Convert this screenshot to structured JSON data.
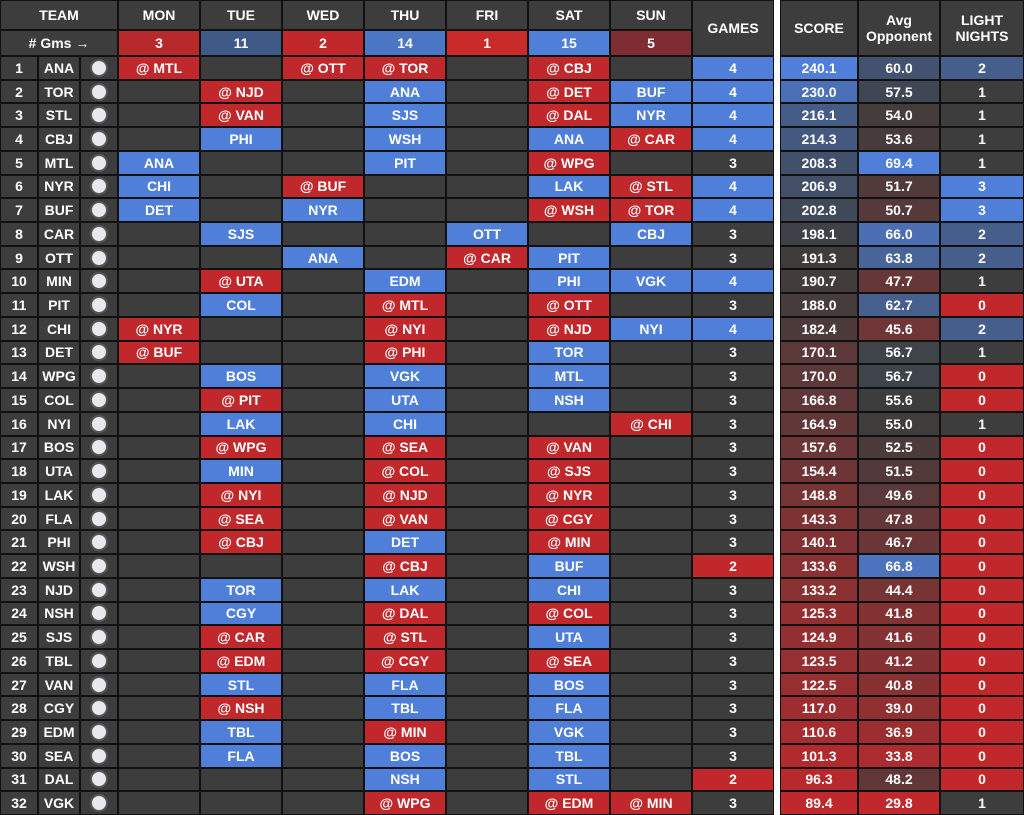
{
  "header": {
    "team": "TEAM",
    "games_label": "# Gms →",
    "games": "GAMES",
    "score": "SCORE",
    "avg": [
      "Avg",
      "Opponent"
    ],
    "light": [
      "LIGHT",
      "NIGHTS"
    ],
    "days": [
      {
        "name": "MON",
        "count": 3,
        "color": "#b8292b"
      },
      {
        "name": "TUE",
        "count": 11,
        "color": "#3f5a86"
      },
      {
        "name": "WED",
        "count": 2,
        "color": "#c0282b"
      },
      {
        "name": "THU",
        "count": 14,
        "color": "#4a76c4"
      },
      {
        "name": "FRI",
        "count": 1,
        "color": "#c92a2a"
      },
      {
        "name": "SAT",
        "count": 15,
        "color": "#4f7fd6"
      },
      {
        "name": "SUN",
        "count": 5,
        "color": "#7e2e33"
      }
    ]
  },
  "colors": {
    "home": "#4f7fd8",
    "away": "#c0282b",
    "empty": "#3d3d3d"
  },
  "rows": [
    {
      "rank": 1,
      "team": "ANA",
      "games": [
        "@ MTL",
        null,
        "@ OTT",
        "@ TOR",
        null,
        "@ CBJ",
        null
      ],
      "total": 4,
      "score": "240.1",
      "avg": "60.0",
      "light": 2
    },
    {
      "rank": 2,
      "team": "TOR",
      "games": [
        null,
        "@ NJD",
        null,
        "ANA",
        null,
        "@ DET",
        "BUF"
      ],
      "total": 4,
      "score": "230.0",
      "avg": "57.5",
      "light": 1
    },
    {
      "rank": 3,
      "team": "STL",
      "games": [
        null,
        "@ VAN",
        null,
        "SJS",
        null,
        "@ DAL",
        "NYR"
      ],
      "total": 4,
      "score": "216.1",
      "avg": "54.0",
      "light": 1
    },
    {
      "rank": 4,
      "team": "CBJ",
      "games": [
        null,
        "PHI",
        null,
        "WSH",
        null,
        "ANA",
        "@ CAR"
      ],
      "total": 4,
      "score": "214.3",
      "avg": "53.6",
      "light": 1
    },
    {
      "rank": 5,
      "team": "MTL",
      "games": [
        "ANA",
        null,
        null,
        "PIT",
        null,
        "@ WPG",
        null
      ],
      "total": 3,
      "score": "208.3",
      "avg": "69.4",
      "light": 1
    },
    {
      "rank": 6,
      "team": "NYR",
      "games": [
        "CHI",
        null,
        "@ BUF",
        null,
        null,
        "LAK",
        "@ STL"
      ],
      "total": 4,
      "score": "206.9",
      "avg": "51.7",
      "light": 3
    },
    {
      "rank": 7,
      "team": "BUF",
      "games": [
        "DET",
        null,
        "NYR",
        null,
        null,
        "@ WSH",
        "@ TOR"
      ],
      "total": 4,
      "score": "202.8",
      "avg": "50.7",
      "light": 3
    },
    {
      "rank": 8,
      "team": "CAR",
      "games": [
        null,
        "SJS",
        null,
        null,
        "OTT",
        null,
        "CBJ"
      ],
      "total": 3,
      "score": "198.1",
      "avg": "66.0",
      "light": 2
    },
    {
      "rank": 9,
      "team": "OTT",
      "games": [
        null,
        null,
        "ANA",
        null,
        "@ CAR",
        "PIT",
        null
      ],
      "total": 3,
      "score": "191.3",
      "avg": "63.8",
      "light": 2
    },
    {
      "rank": 10,
      "team": "MIN",
      "games": [
        null,
        "@ UTA",
        null,
        "EDM",
        null,
        "PHI",
        "VGK"
      ],
      "total": 4,
      "score": "190.7",
      "avg": "47.7",
      "light": 1
    },
    {
      "rank": 11,
      "team": "PIT",
      "games": [
        null,
        "COL",
        null,
        "@ MTL",
        null,
        "@ OTT",
        null
      ],
      "total": 3,
      "score": "188.0",
      "avg": "62.7",
      "light": 0
    },
    {
      "rank": 12,
      "team": "CHI",
      "games": [
        "@ NYR",
        null,
        null,
        "@ NYI",
        null,
        "@ NJD",
        "NYI"
      ],
      "total": 4,
      "score": "182.4",
      "avg": "45.6",
      "light": 2
    },
    {
      "rank": 13,
      "team": "DET",
      "games": [
        "@ BUF",
        null,
        null,
        "@ PHI",
        null,
        "TOR",
        null
      ],
      "total": 3,
      "score": "170.1",
      "avg": "56.7",
      "light": 1
    },
    {
      "rank": 14,
      "team": "WPG",
      "games": [
        null,
        "BOS",
        null,
        "VGK",
        null,
        "MTL",
        null
      ],
      "total": 3,
      "score": "170.0",
      "avg": "56.7",
      "light": 0
    },
    {
      "rank": 15,
      "team": "COL",
      "games": [
        null,
        "@ PIT",
        null,
        "UTA",
        null,
        "NSH",
        null
      ],
      "total": 3,
      "score": "166.8",
      "avg": "55.6",
      "light": 0
    },
    {
      "rank": 16,
      "team": "NYI",
      "games": [
        null,
        "LAK",
        null,
        "CHI",
        null,
        null,
        "@ CHI"
      ],
      "total": 3,
      "score": "164.9",
      "avg": "55.0",
      "light": 1
    },
    {
      "rank": 17,
      "team": "BOS",
      "games": [
        null,
        "@ WPG",
        null,
        "@ SEA",
        null,
        "@ VAN",
        null
      ],
      "total": 3,
      "score": "157.6",
      "avg": "52.5",
      "light": 0
    },
    {
      "rank": 18,
      "team": "UTA",
      "games": [
        null,
        "MIN",
        null,
        "@ COL",
        null,
        "@ SJS",
        null
      ],
      "total": 3,
      "score": "154.4",
      "avg": "51.5",
      "light": 0
    },
    {
      "rank": 19,
      "team": "LAK",
      "games": [
        null,
        "@ NYI",
        null,
        "@ NJD",
        null,
        "@ NYR",
        null
      ],
      "total": 3,
      "score": "148.8",
      "avg": "49.6",
      "light": 0
    },
    {
      "rank": 20,
      "team": "FLA",
      "games": [
        null,
        "@ SEA",
        null,
        "@ VAN",
        null,
        "@ CGY",
        null
      ],
      "total": 3,
      "score": "143.3",
      "avg": "47.8",
      "light": 0
    },
    {
      "rank": 21,
      "team": "PHI",
      "games": [
        null,
        "@ CBJ",
        null,
        "DET",
        null,
        "@ MIN",
        null
      ],
      "total": 3,
      "score": "140.1",
      "avg": "46.7",
      "light": 0
    },
    {
      "rank": 22,
      "team": "WSH",
      "games": [
        null,
        null,
        null,
        "@ CBJ",
        null,
        "BUF",
        null
      ],
      "total": 2,
      "score": "133.6",
      "avg": "66.8",
      "light": 0
    },
    {
      "rank": 23,
      "team": "NJD",
      "games": [
        null,
        "TOR",
        null,
        "LAK",
        null,
        "CHI",
        null
      ],
      "total": 3,
      "score": "133.2",
      "avg": "44.4",
      "light": 0
    },
    {
      "rank": 24,
      "team": "NSH",
      "games": [
        null,
        "CGY",
        null,
        "@ DAL",
        null,
        "@ COL",
        null
      ],
      "total": 3,
      "score": "125.3",
      "avg": "41.8",
      "light": 0
    },
    {
      "rank": 25,
      "team": "SJS",
      "games": [
        null,
        "@ CAR",
        null,
        "@ STL",
        null,
        "UTA",
        null
      ],
      "total": 3,
      "score": "124.9",
      "avg": "41.6",
      "light": 0
    },
    {
      "rank": 26,
      "team": "TBL",
      "games": [
        null,
        "@ EDM",
        null,
        "@ CGY",
        null,
        "@ SEA",
        null
      ],
      "total": 3,
      "score": "123.5",
      "avg": "41.2",
      "light": 0
    },
    {
      "rank": 27,
      "team": "VAN",
      "games": [
        null,
        "STL",
        null,
        "FLA",
        null,
        "BOS",
        null
      ],
      "total": 3,
      "score": "122.5",
      "avg": "40.8",
      "light": 0
    },
    {
      "rank": 28,
      "team": "CGY",
      "games": [
        null,
        "@ NSH",
        null,
        "TBL",
        null,
        "FLA",
        null
      ],
      "total": 3,
      "score": "117.0",
      "avg": "39.0",
      "light": 0
    },
    {
      "rank": 29,
      "team": "EDM",
      "games": [
        null,
        "TBL",
        null,
        "@ MIN",
        null,
        "VGK",
        null
      ],
      "total": 3,
      "score": "110.6",
      "avg": "36.9",
      "light": 0
    },
    {
      "rank": 30,
      "team": "SEA",
      "games": [
        null,
        "FLA",
        null,
        "BOS",
        null,
        "TBL",
        null
      ],
      "total": 3,
      "score": "101.3",
      "avg": "33.8",
      "light": 0
    },
    {
      "rank": 31,
      "team": "DAL",
      "games": [
        null,
        null,
        null,
        "NSH",
        null,
        "STL",
        null
      ],
      "total": 2,
      "score": "96.3",
      "avg": "48.2",
      "light": 0
    },
    {
      "rank": 32,
      "team": "VGK",
      "games": [
        null,
        null,
        null,
        "@ WPG",
        null,
        "@ EDM",
        "@ MIN"
      ],
      "total": 3,
      "score": "89.4",
      "avg": "29.8",
      "light": 1
    }
  ]
}
